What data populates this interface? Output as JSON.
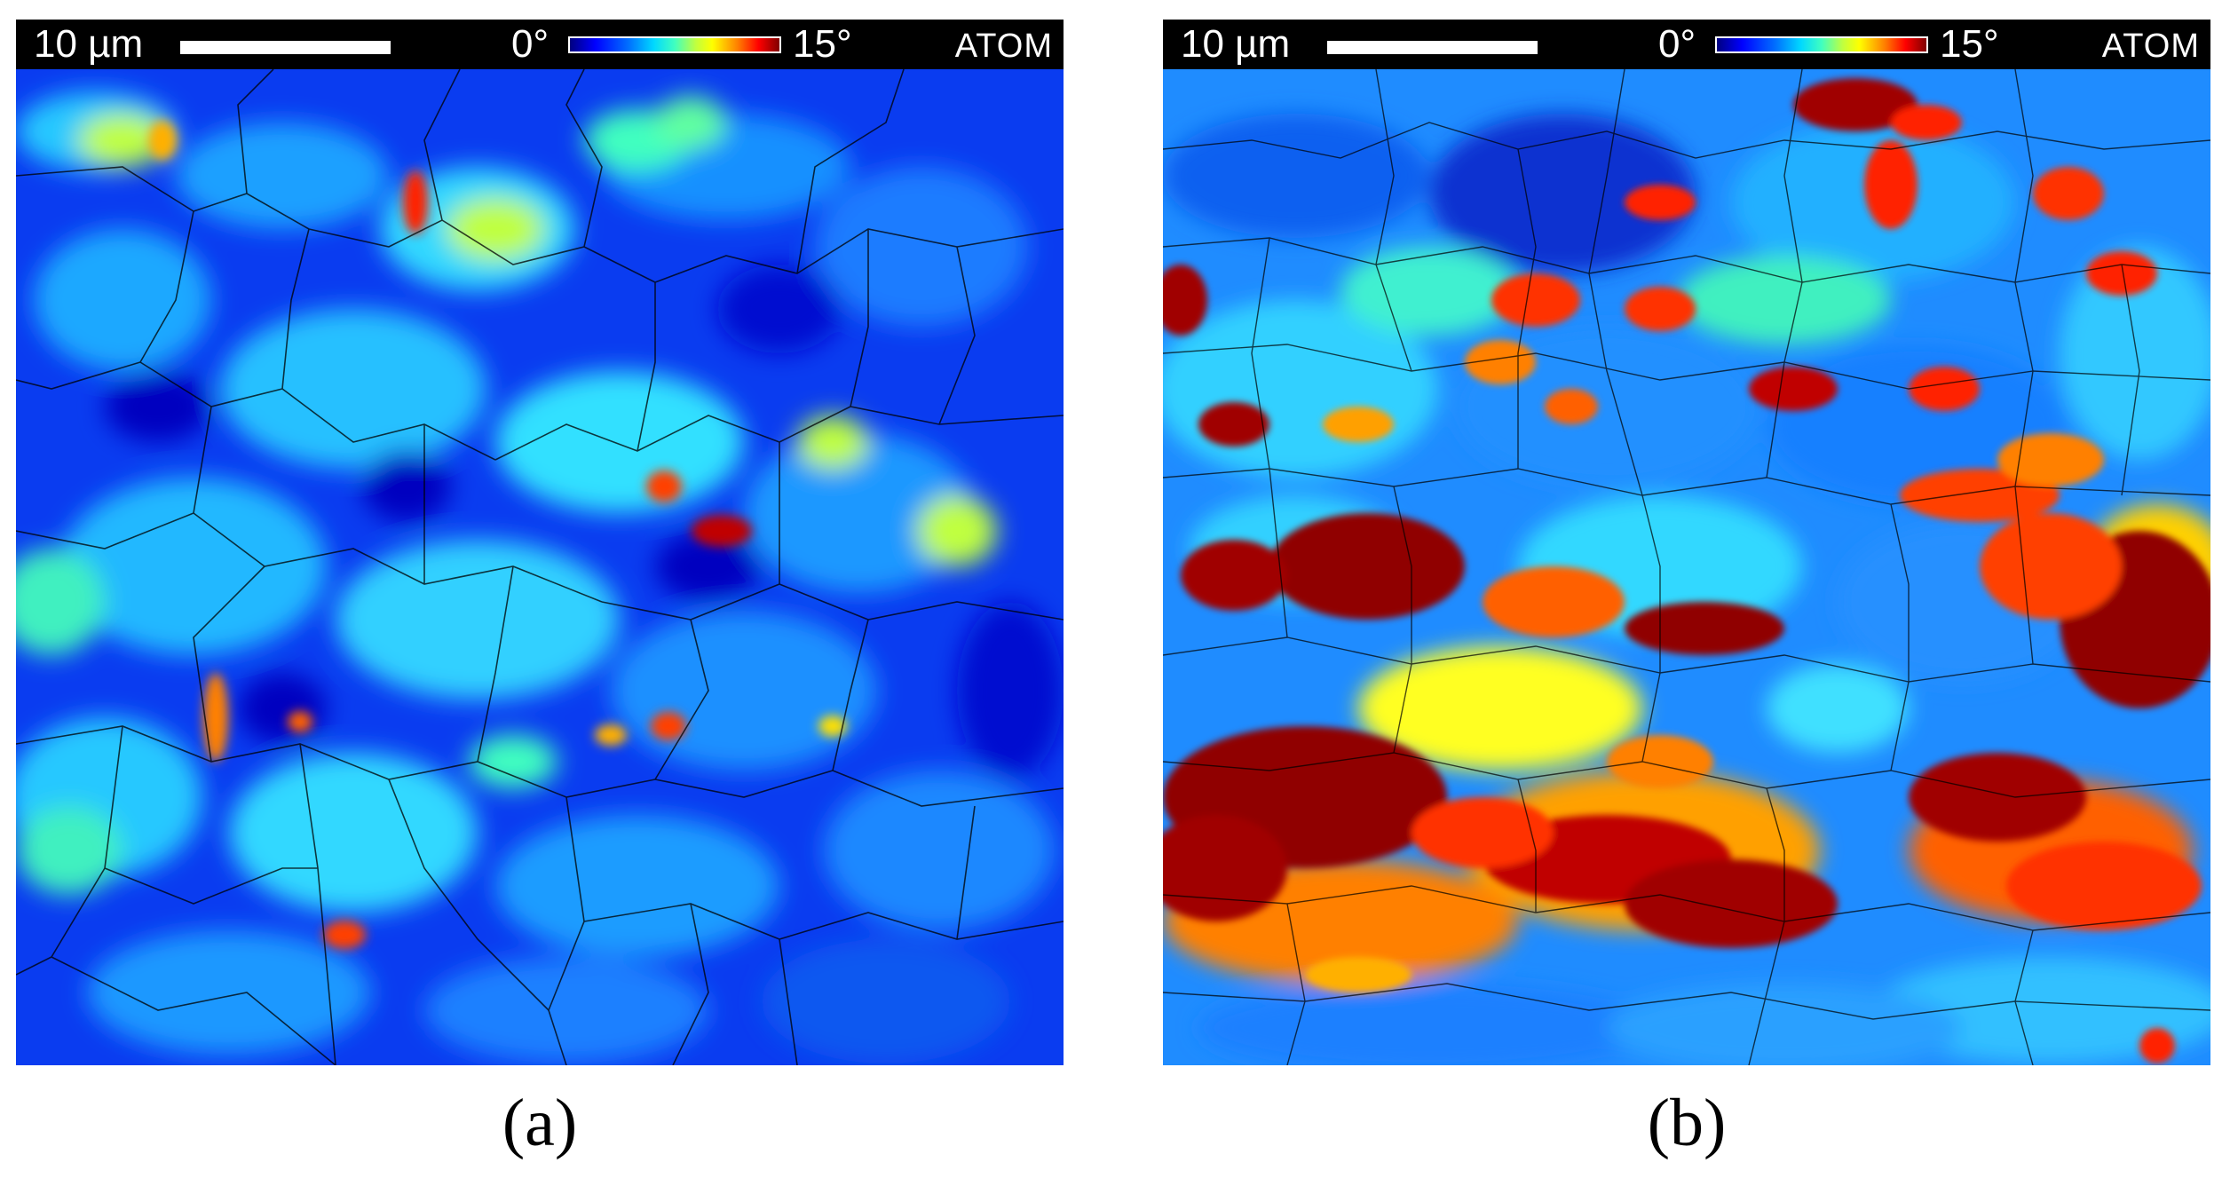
{
  "panels": [
    {
      "scale_bar_label": "10 µm",
      "colorbar_min": "0°",
      "colorbar_max": "15°",
      "brand": "ATOM",
      "caption": "(a)",
      "dominant_color": "#0a3cf0",
      "colormap": [
        "#000080",
        "#0000ff",
        "#0070ff",
        "#00d8ff",
        "#40ffc0",
        "#c0ff40",
        "#ffff00",
        "#ff8000",
        "#ff0000",
        "#800000"
      ]
    },
    {
      "scale_bar_label": "10 µm",
      "colorbar_min": "0°",
      "colorbar_max": "15°",
      "brand": "ATOM",
      "caption": "(b)",
      "dominant_color": "#1f8cff",
      "colormap": [
        "#000080",
        "#0000ff",
        "#0070ff",
        "#00d8ff",
        "#40ffc0",
        "#c0ff40",
        "#ffff00",
        "#ff8000",
        "#ff0000",
        "#800000"
      ]
    }
  ]
}
